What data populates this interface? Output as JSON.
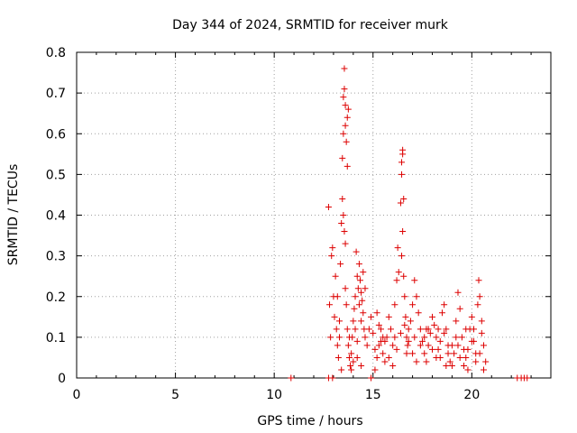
{
  "chart_data": {
    "type": "scatter",
    "title": "Day 344 of 2024, SRMTID for receiver murk",
    "xlabel": "GPS time / hours",
    "ylabel": "SRMTID / TECUs",
    "xlim": [
      0,
      24
    ],
    "ylim": [
      0,
      0.8
    ],
    "xticks": [
      "0",
      "5",
      "10",
      "15",
      "20"
    ],
    "yticks": [
      "0",
      "0.1",
      "0.2",
      "0.3",
      "0.4",
      "0.5",
      "0.6",
      "0.7",
      "0.8"
    ],
    "grid": true,
    "marker": "plus",
    "color": "#dd0000",
    "series": [
      {
        "points": [
          [
            10.85,
            0.0
          ],
          [
            12.75,
            0.0
          ],
          [
            12.95,
            0.0
          ],
          [
            14.9,
            0.0
          ],
          [
            22.3,
            0.0
          ],
          [
            22.5,
            0.0
          ],
          [
            22.65,
            0.0
          ],
          [
            22.8,
            0.0
          ],
          [
            12.75,
            0.42
          ],
          [
            12.8,
            0.18
          ],
          [
            12.85,
            0.1
          ],
          [
            12.9,
            0.3
          ],
          [
            12.95,
            0.32
          ],
          [
            13.0,
            0.2
          ],
          [
            13.05,
            0.15
          ],
          [
            13.1,
            0.25
          ],
          [
            13.15,
            0.12
          ],
          [
            13.2,
            0.08
          ],
          [
            13.25,
            0.05
          ],
          [
            13.3,
            0.14
          ],
          [
            13.35,
            0.28
          ],
          [
            13.4,
            0.38
          ],
          [
            13.45,
            0.44
          ],
          [
            13.45,
            0.54
          ],
          [
            13.5,
            0.6
          ],
          [
            13.5,
            0.69
          ],
          [
            13.55,
            0.76
          ],
          [
            13.55,
            0.71
          ],
          [
            13.6,
            0.67
          ],
          [
            13.6,
            0.62
          ],
          [
            13.65,
            0.58
          ],
          [
            13.7,
            0.52
          ],
          [
            13.7,
            0.64
          ],
          [
            13.75,
            0.66
          ],
          [
            13.5,
            0.4
          ],
          [
            13.55,
            0.36
          ],
          [
            13.6,
            0.33
          ],
          [
            13.6,
            0.22
          ],
          [
            13.65,
            0.18
          ],
          [
            13.7,
            0.12
          ],
          [
            13.75,
            0.08
          ],
          [
            13.8,
            0.05
          ],
          [
            13.85,
            0.03
          ],
          [
            13.9,
            0.02
          ],
          [
            13.95,
            0.1
          ],
          [
            14.0,
            0.14
          ],
          [
            14.05,
            0.17
          ],
          [
            14.1,
            0.2
          ],
          [
            14.15,
            0.31
          ],
          [
            14.2,
            0.25
          ],
          [
            14.25,
            0.22
          ],
          [
            14.3,
            0.28
          ],
          [
            14.35,
            0.24
          ],
          [
            14.4,
            0.21
          ],
          [
            14.45,
            0.19
          ],
          [
            14.5,
            0.16
          ],
          [
            14.55,
            0.12
          ],
          [
            14.6,
            0.1
          ],
          [
            13.2,
            0.2
          ],
          [
            13.3,
            0.1
          ],
          [
            13.4,
            0.02
          ],
          [
            13.9,
            0.06
          ],
          [
            14.0,
            0.04
          ],
          [
            14.2,
            0.09
          ],
          [
            14.4,
            0.03
          ],
          [
            14.7,
            0.08
          ],
          [
            14.8,
            0.12
          ],
          [
            14.9,
            0.15
          ],
          [
            15.0,
            0.11
          ],
          [
            15.1,
            0.07
          ],
          [
            15.2,
            0.05
          ],
          [
            15.3,
            0.13
          ],
          [
            15.4,
            0.09
          ],
          [
            15.5,
            0.06
          ],
          [
            15.6,
            0.04
          ],
          [
            15.7,
            0.1
          ],
          [
            15.8,
            0.15
          ],
          [
            15.9,
            0.12
          ],
          [
            16.0,
            0.08
          ],
          [
            16.1,
            0.18
          ],
          [
            16.2,
            0.24
          ],
          [
            16.25,
            0.32
          ],
          [
            16.3,
            0.26
          ],
          [
            16.4,
            0.43
          ],
          [
            16.45,
            0.5
          ],
          [
            16.5,
            0.55
          ],
          [
            16.5,
            0.56
          ],
          [
            16.45,
            0.53
          ],
          [
            16.55,
            0.44
          ],
          [
            16.5,
            0.36
          ],
          [
            16.45,
            0.3
          ],
          [
            16.55,
            0.25
          ],
          [
            16.6,
            0.2
          ],
          [
            16.65,
            0.15
          ],
          [
            16.7,
            0.1
          ],
          [
            16.75,
            0.08
          ],
          [
            16.8,
            0.12
          ],
          [
            16.9,
            0.14
          ],
          [
            17.0,
            0.18
          ],
          [
            17.1,
            0.24
          ],
          [
            17.2,
            0.2
          ],
          [
            17.3,
            0.16
          ],
          [
            17.4,
            0.12
          ],
          [
            17.5,
            0.09
          ],
          [
            17.6,
            0.06
          ],
          [
            17.7,
            0.04
          ],
          [
            17.8,
            0.08
          ],
          [
            17.9,
            0.11
          ],
          [
            18.0,
            0.15
          ],
          [
            18.1,
            0.13
          ],
          [
            18.2,
            0.1
          ],
          [
            18.3,
            0.07
          ],
          [
            18.4,
            0.05
          ],
          [
            18.5,
            0.16
          ],
          [
            18.6,
            0.18
          ],
          [
            18.7,
            0.12
          ],
          [
            18.8,
            0.08
          ],
          [
            18.9,
            0.04
          ],
          [
            19.0,
            0.03
          ],
          [
            19.1,
            0.06
          ],
          [
            19.2,
            0.14
          ],
          [
            19.3,
            0.21
          ],
          [
            19.4,
            0.17
          ],
          [
            19.5,
            0.1
          ],
          [
            19.6,
            0.07
          ],
          [
            19.7,
            0.05
          ],
          [
            19.8,
            0.02
          ],
          [
            19.9,
            0.12
          ],
          [
            20.0,
            0.15
          ],
          [
            20.1,
            0.09
          ],
          [
            20.2,
            0.06
          ],
          [
            20.3,
            0.18
          ],
          [
            20.35,
            0.24
          ],
          [
            20.4,
            0.2
          ],
          [
            20.5,
            0.11
          ],
          [
            20.6,
            0.08
          ],
          [
            20.7,
            0.04
          ],
          [
            15.2,
            0.16
          ],
          [
            15.4,
            0.12
          ],
          [
            15.6,
            0.09
          ],
          [
            15.8,
            0.05
          ],
          [
            16.0,
            0.03
          ],
          [
            16.2,
            0.07
          ],
          [
            16.4,
            0.11
          ],
          [
            16.6,
            0.13
          ],
          [
            16.8,
            0.09
          ],
          [
            17.0,
            0.06
          ],
          [
            17.2,
            0.04
          ],
          [
            17.4,
            0.08
          ],
          [
            17.6,
            0.1
          ],
          [
            17.8,
            0.12
          ],
          [
            18.0,
            0.07
          ],
          [
            18.2,
            0.05
          ],
          [
            18.4,
            0.09
          ],
          [
            18.6,
            0.11
          ],
          [
            18.8,
            0.06
          ],
          [
            19.0,
            0.08
          ],
          [
            19.2,
            0.1
          ],
          [
            19.4,
            0.05
          ],
          [
            19.6,
            0.03
          ],
          [
            19.8,
            0.07
          ],
          [
            20.0,
            0.09
          ],
          [
            20.2,
            0.04
          ],
          [
            20.4,
            0.06
          ],
          [
            20.6,
            0.02
          ],
          [
            14.1,
            0.12
          ],
          [
            14.3,
            0.18
          ],
          [
            14.5,
            0.26
          ],
          [
            14.6,
            0.22
          ],
          [
            14.4,
            0.14
          ],
          [
            14.2,
            0.05
          ],
          [
            13.8,
            0.1
          ],
          [
            15.1,
            0.02
          ],
          [
            15.3,
            0.08
          ],
          [
            15.5,
            0.1
          ],
          [
            16.1,
            0.1
          ],
          [
            16.7,
            0.06
          ],
          [
            17.1,
            0.1
          ],
          [
            17.7,
            0.12
          ],
          [
            18.3,
            0.12
          ],
          [
            18.7,
            0.03
          ],
          [
            19.3,
            0.08
          ],
          [
            19.7,
            0.12
          ],
          [
            20.1,
            0.12
          ],
          [
            20.5,
            0.14
          ]
        ]
      }
    ]
  }
}
